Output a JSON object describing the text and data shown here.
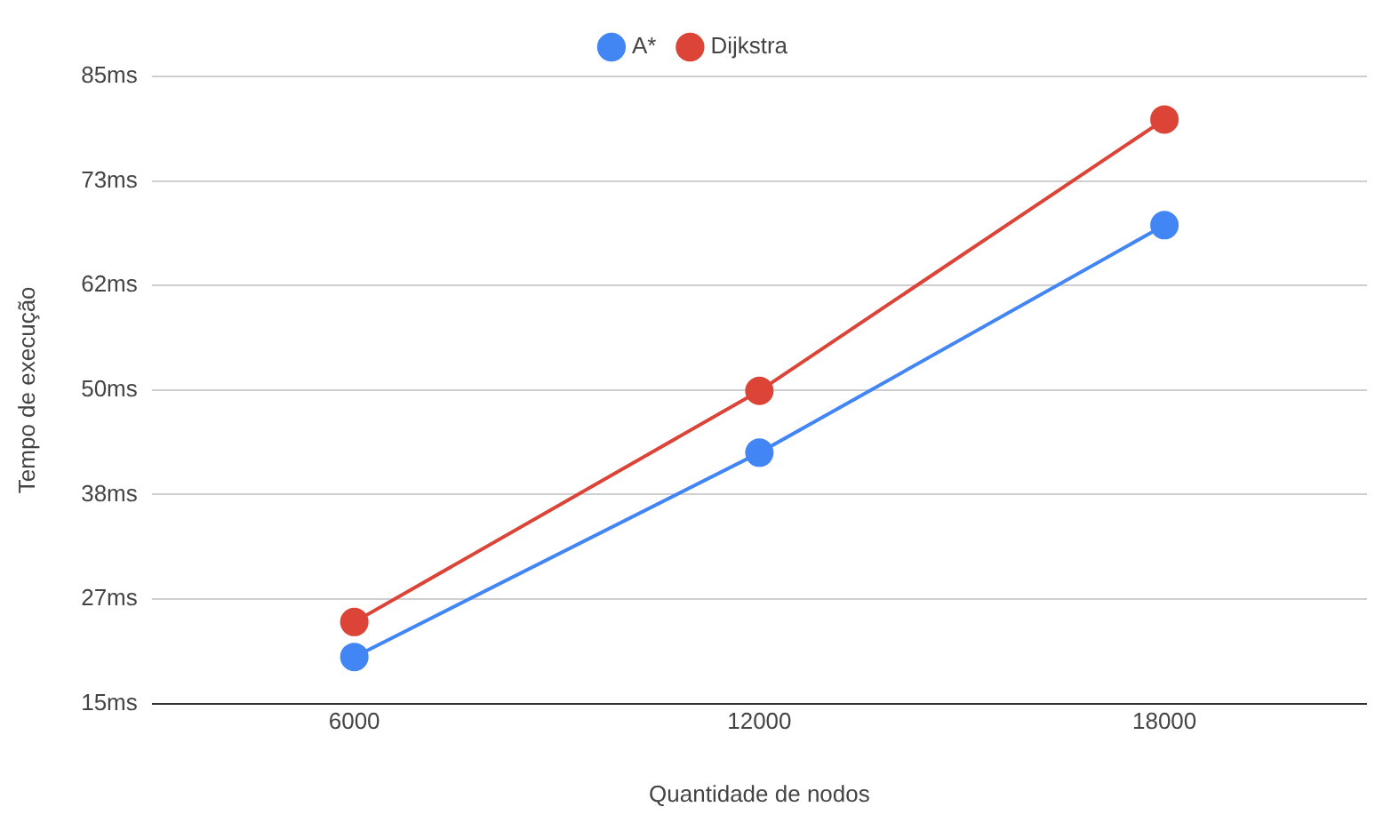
{
  "chart_data": {
    "type": "line",
    "xlabel": "Quantidade de nodos",
    "ylabel": "Tempo de execução",
    "x": [
      6000,
      12000,
      18000
    ],
    "series": [
      {
        "name": "A*",
        "color": "#4285f4",
        "values": [
          20.2,
          43.0,
          68.4
        ]
      },
      {
        "name": "Dijkstra",
        "color": "#db4437",
        "values": [
          24.1,
          49.9,
          80.2
        ]
      }
    ],
    "xlim": [
      3000,
      21000
    ],
    "xticks": [
      6000,
      12000,
      18000
    ],
    "ylim": [
      15,
      85
    ],
    "yticks": [
      {
        "value": 15,
        "label": "15ms"
      },
      {
        "value": 26.67,
        "label": "27ms"
      },
      {
        "value": 38.33,
        "label": "38ms"
      },
      {
        "value": 50,
        "label": "50ms"
      },
      {
        "value": 61.67,
        "label": "62ms"
      },
      {
        "value": 73.33,
        "label": "73ms"
      },
      {
        "value": 85,
        "label": "85ms"
      }
    ],
    "grid": "y",
    "legend": "top",
    "marker": "circle",
    "line_style": "solid"
  }
}
